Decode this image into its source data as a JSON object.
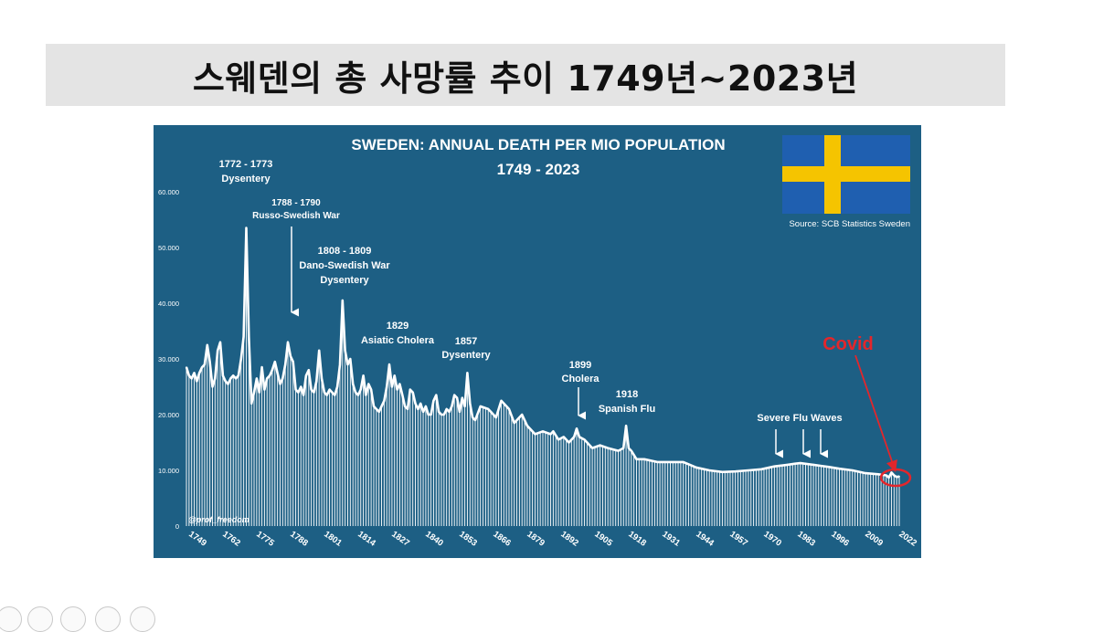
{
  "page": {
    "heading": "스웨덴의 총 사망률 추이 1749년~2023년"
  },
  "chart_data": {
    "type": "line",
    "title": "SWEDEN: ANNUAL DEATH PER MIO POPULATION",
    "subtitle": "1749 - 2023",
    "source": "Source: SCB Statistics Sweden",
    "credit": "@prof_freedom",
    "xlabel": "",
    "ylabel": "",
    "xlim": [
      1749,
      2023
    ],
    "ylim": [
      0,
      60000
    ],
    "y_ticks": [
      {
        "value": 0,
        "label": "0"
      },
      {
        "value": 10000,
        "label": "10.000"
      },
      {
        "value": 20000,
        "label": "20.000"
      },
      {
        "value": 30000,
        "label": "30.000"
      },
      {
        "value": 40000,
        "label": "40.000"
      },
      {
        "value": 50000,
        "label": "50.000"
      },
      {
        "value": 60000,
        "label": "60.000"
      }
    ],
    "x_ticks": [
      "1749",
      "1762",
      "1775",
      "1788",
      "1801",
      "1814",
      "1827",
      "1840",
      "1853",
      "1866",
      "1879",
      "1892",
      "1905",
      "1918",
      "1931",
      "1944",
      "1957",
      "1970",
      "1983",
      "1996",
      "2009",
      "2022"
    ],
    "grid": false,
    "legend": "none",
    "fill": "vertical-bars",
    "colors": {
      "background": "#1d5f84",
      "line": "#ffffff",
      "covid": "#e3262b"
    },
    "flag": {
      "blue": "#1f5fb0",
      "yellow": "#f5c400"
    },
    "series": [
      {
        "x": [
          1749,
          1750,
          1751,
          1752,
          1753,
          1754,
          1755,
          1756,
          1757,
          1758,
          1759,
          1760,
          1761,
          1762,
          1763,
          1764,
          1765,
          1766,
          1767,
          1768,
          1769,
          1770,
          1771,
          1772,
          1773,
          1774,
          1775,
          1776,
          1777,
          1778,
          1779,
          1780,
          1781,
          1782,
          1783,
          1784,
          1785,
          1786,
          1787,
          1788,
          1789,
          1790,
          1791,
          1792,
          1793,
          1794,
          1795,
          1796,
          1797,
          1798,
          1799,
          1800,
          1801,
          1802,
          1803,
          1804,
          1805,
          1806,
          1807,
          1808,
          1809,
          1810,
          1811,
          1812,
          1813,
          1814,
          1815,
          1816,
          1817,
          1818,
          1819,
          1820,
          1821,
          1822,
          1823,
          1824,
          1825,
          1826,
          1827,
          1828,
          1829,
          1830,
          1831,
          1832,
          1833,
          1834,
          1835,
          1836,
          1837,
          1838,
          1839,
          1840,
          1841,
          1842,
          1843,
          1844,
          1845,
          1846,
          1847,
          1848,
          1849,
          1850,
          1851,
          1852,
          1853,
          1854,
          1855,
          1856,
          1857,
          1858,
          1859,
          1860,
          1862,
          1865,
          1866,
          1868,
          1870,
          1873,
          1875,
          1878,
          1880,
          1883,
          1886,
          1889,
          1890,
          1892,
          1894,
          1896,
          1898,
          1899,
          1900,
          1902,
          1905,
          1908,
          1911,
          1915,
          1917,
          1918,
          1919,
          1920,
          1922,
          1925,
          1930,
          1935,
          1940,
          1945,
          1950,
          1955,
          1960,
          1965,
          1970,
          1975,
          1980,
          1983,
          1985,
          1990,
          1993,
          1996,
          2000,
          2005,
          2010,
          2015,
          2018,
          2019,
          2020,
          2021,
          2022,
          2023
        ],
        "y": [
          28500,
          27000,
          26500,
          27500,
          26000,
          27500,
          28500,
          29000,
          32500,
          29500,
          25000,
          26500,
          31500,
          33000,
          27000,
          26000,
          25500,
          26500,
          27000,
          26500,
          27000,
          30000,
          34000,
          53500,
          34000,
          22000,
          24000,
          26500,
          24000,
          28500,
          24500,
          26500,
          27000,
          28000,
          29500,
          27500,
          25500,
          26500,
          29000,
          33000,
          30500,
          29500,
          24500,
          24000,
          25000,
          23500,
          27000,
          28000,
          24500,
          24000,
          26000,
          31500,
          26500,
          24000,
          23500,
          24500,
          24000,
          23500,
          25000,
          29000,
          40500,
          31500,
          29000,
          30000,
          25500,
          24000,
          23500,
          24500,
          27000,
          23500,
          25500,
          24500,
          21500,
          21000,
          20500,
          21500,
          22500,
          25000,
          29000,
          25000,
          27000,
          24500,
          25500,
          23500,
          21500,
          21000,
          24500,
          24000,
          22000,
          21000,
          22000,
          20500,
          21500,
          20000,
          20000,
          22500,
          23500,
          20500,
          20000,
          20000,
          21000,
          20500,
          21500,
          23500,
          23000,
          20500,
          23000,
          21500,
          27500,
          22000,
          19500,
          19000,
          21500,
          21000,
          20500,
          19500,
          22500,
          21000,
          18500,
          20000,
          18000,
          16500,
          17000,
          16500,
          17000,
          15500,
          16000,
          15000,
          16000,
          17500,
          16000,
          15500,
          14000,
          14500,
          14000,
          13500,
          14000,
          18000,
          14000,
          13500,
          12000,
          12000,
          11500,
          11500,
          11500,
          10500,
          10000,
          9700,
          9800,
          10000,
          10200,
          10700,
          11000,
          11200,
          11300,
          11000,
          10800,
          10600,
          10300,
          10000,
          9500,
          9300,
          9100,
          8700,
          9600,
          9100,
          8800,
          8900
        ]
      }
    ],
    "annotations": [
      {
        "lines": [
          "1772 - 1773",
          "Dysentery"
        ]
      },
      {
        "lines": [
          "1788 - 1790",
          "Russo-Swedish War"
        ]
      },
      {
        "lines": [
          "1808 - 1809",
          "Dano-Swedish War",
          "Dysentery"
        ]
      },
      {
        "lines": [
          "1829",
          "Asiatic Cholera"
        ]
      },
      {
        "lines": [
          "1857",
          "Dysentery"
        ]
      },
      {
        "lines": [
          "1899",
          "Cholera"
        ]
      },
      {
        "lines": [
          "1918",
          "Spanish Flu"
        ]
      },
      {
        "lines": [
          "Severe Flu Waves"
        ]
      },
      {
        "lines": [
          "Covid"
        ]
      }
    ]
  }
}
